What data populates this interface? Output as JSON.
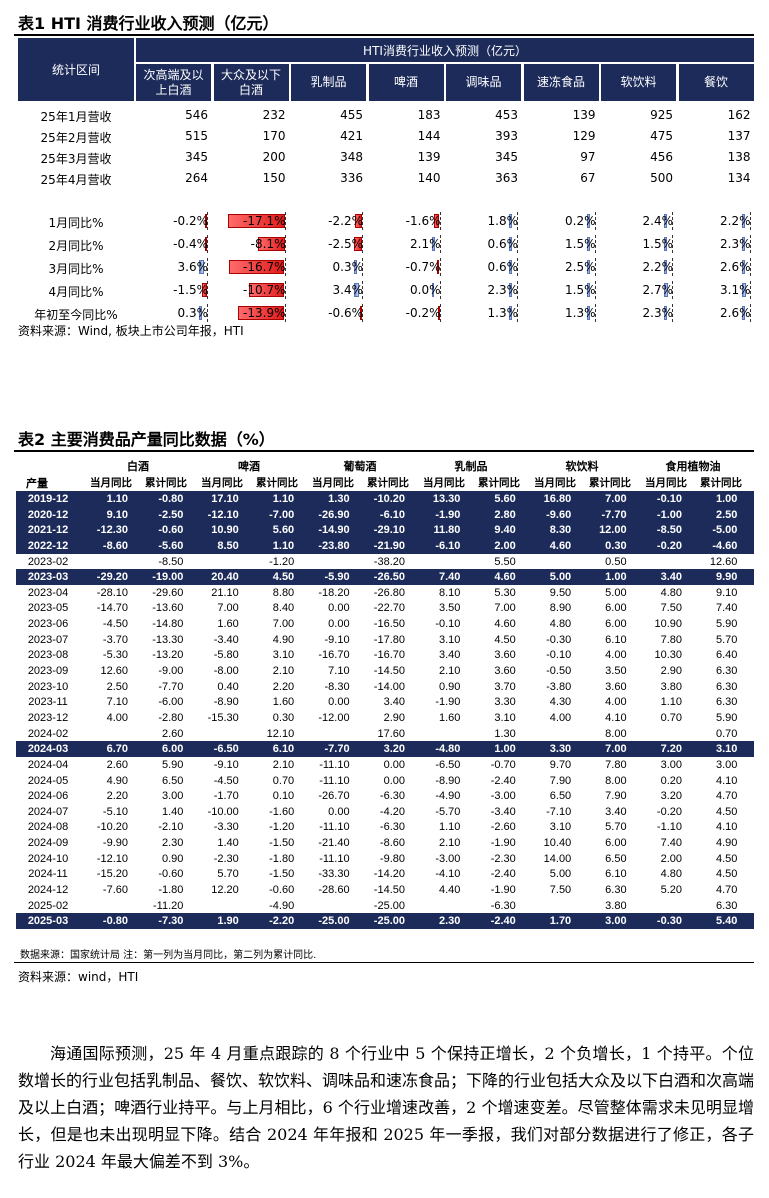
{
  "table1": {
    "caption": "表1   HTI 消费行业收入预测（亿元）",
    "corner": "统计区间",
    "group_header": "HTI消费行业收入预测（亿元）",
    "categories": [
      "次高端及以\n上白酒",
      "大众及以下\n白酒",
      "乳制品",
      "啤酒",
      "调味品",
      "速冻食品",
      "软饮料",
      "餐饮"
    ],
    "revenue_rows": [
      {
        "label": "25年1月营收",
        "values": [
          "546",
          "232",
          "455",
          "183",
          "453",
          "139",
          "925",
          "162"
        ]
      },
      {
        "label": "25年2月营收",
        "values": [
          "515",
          "170",
          "421",
          "144",
          "393",
          "129",
          "475",
          "137"
        ]
      },
      {
        "label": "25年3月营收",
        "values": [
          "345",
          "200",
          "348",
          "139",
          "345",
          "97",
          "456",
          "138"
        ]
      },
      {
        "label": "25年4月营收",
        "values": [
          "264",
          "150",
          "336",
          "140",
          "363",
          "67",
          "500",
          "134"
        ]
      }
    ],
    "yoy_rows": [
      {
        "label": "1月同比%",
        "values": [
          "-0.2%",
          "-17.1%",
          "-2.2%",
          "-1.6%",
          "1.8%",
          "0.2%",
          "2.4%",
          "2.2%"
        ],
        "nums": [
          -0.2,
          -17.1,
          -2.2,
          -1.6,
          1.8,
          0.2,
          2.4,
          2.2
        ]
      },
      {
        "label": "2月同比%",
        "values": [
          "-0.4%",
          "-8.1%",
          "-2.5%",
          "2.1%",
          "0.6%",
          "1.5%",
          "1.5%",
          "2.3%"
        ],
        "nums": [
          -0.4,
          -8.1,
          -2.5,
          2.1,
          0.6,
          1.5,
          1.5,
          2.3
        ]
      },
      {
        "label": "3月同比%",
        "values": [
          "3.6%",
          "-16.7%",
          "0.3%",
          "-0.7%",
          "0.6%",
          "2.5%",
          "2.2%",
          "2.6%"
        ],
        "nums": [
          3.6,
          -16.7,
          0.3,
          -0.7,
          0.6,
          2.5,
          2.2,
          2.6
        ]
      },
      {
        "label": "4月同比%",
        "values": [
          "-1.5%",
          "-10.7%",
          "3.4%",
          "0.0%",
          "2.3%",
          "1.5%",
          "2.7%",
          "3.1%"
        ],
        "nums": [
          -1.5,
          -10.7,
          3.4,
          0.0,
          2.3,
          1.5,
          2.7,
          3.1
        ]
      },
      {
        "label": "年初至今同比%",
        "values": [
          "0.3%",
          "-13.9%",
          "-0.6%",
          "-0.2%",
          "1.3%",
          "1.3%",
          "2.3%",
          "2.6%"
        ],
        "nums": [
          0.3,
          -13.9,
          -0.6,
          -0.2,
          1.3,
          1.3,
          2.3,
          2.6
        ]
      }
    ],
    "source": "资料来源：Wind, 板块上市公司年报，HTI"
  },
  "table2": {
    "caption": "表2   主要消费品产量同比数据（%）",
    "groups": [
      "白酒",
      "啤酒",
      "葡萄酒",
      "乳制品",
      "软饮料",
      "食用植物油"
    ],
    "row_label": "产量",
    "sub_headers": [
      "当月同比",
      "累计同比"
    ],
    "rows": [
      {
        "p": "2019-12",
        "v": [
          "1.10",
          "-0.80",
          "17.10",
          "1.10",
          "1.30",
          "-10.20",
          "13.30",
          "5.60",
          "16.80",
          "7.00",
          "-0.10",
          "1.00"
        ],
        "hl": true
      },
      {
        "p": "2020-12",
        "v": [
          "9.10",
          "-2.50",
          "-12.10",
          "-7.00",
          "-26.90",
          "-6.10",
          "-1.90",
          "2.80",
          "-9.60",
          "-7.70",
          "-1.00",
          "2.50"
        ],
        "hl": true
      },
      {
        "p": "2021-12",
        "v": [
          "-12.30",
          "-0.60",
          "10.90",
          "5.60",
          "-14.90",
          "-29.10",
          "11.80",
          "9.40",
          "8.30",
          "12.00",
          "-8.50",
          "-5.00"
        ],
        "hl": true
      },
      {
        "p": "2022-12",
        "v": [
          "-8.60",
          "-5.60",
          "8.50",
          "1.10",
          "-23.80",
          "-21.90",
          "-6.10",
          "2.00",
          "4.60",
          "0.30",
          "-0.20",
          "-4.60"
        ],
        "hl": true
      },
      {
        "p": "2023-02",
        "v": [
          "",
          "-8.50",
          "",
          "-1.20",
          "",
          "-38.20",
          "",
          "5.50",
          "",
          "0.50",
          "",
          "12.60"
        ],
        "hl": false
      },
      {
        "p": "2023-03",
        "v": [
          "-29.20",
          "-19.00",
          "20.40",
          "4.50",
          "-5.90",
          "-26.50",
          "7.40",
          "4.60",
          "5.00",
          "1.00",
          "3.40",
          "9.90"
        ],
        "hl": true
      },
      {
        "p": "2023-04",
        "v": [
          "-28.10",
          "-29.60",
          "21.10",
          "8.80",
          "-18.20",
          "-26.80",
          "8.10",
          "5.30",
          "9.50",
          "5.00",
          "4.80",
          "9.10"
        ],
        "hl": false
      },
      {
        "p": "2023-05",
        "v": [
          "-14.70",
          "-13.60",
          "7.00",
          "8.40",
          "0.00",
          "-22.70",
          "3.50",
          "7.00",
          "8.90",
          "6.00",
          "7.50",
          "7.40"
        ],
        "hl": false
      },
      {
        "p": "2023-06",
        "v": [
          "-4.50",
          "-14.80",
          "1.60",
          "7.00",
          "0.00",
          "-16.50",
          "-0.10",
          "4.60",
          "4.80",
          "6.00",
          "10.90",
          "5.90"
        ],
        "hl": false
      },
      {
        "p": "2023-07",
        "v": [
          "-3.70",
          "-13.30",
          "-3.40",
          "4.90",
          "-9.10",
          "-17.80",
          "3.10",
          "4.50",
          "-0.30",
          "6.10",
          "7.80",
          "5.70"
        ],
        "hl": false
      },
      {
        "p": "2023-08",
        "v": [
          "-5.30",
          "-13.20",
          "-5.80",
          "3.10",
          "-16.70",
          "-16.70",
          "3.40",
          "3.60",
          "-0.10",
          "4.00",
          "10.30",
          "6.40"
        ],
        "hl": false
      },
      {
        "p": "2023-09",
        "v": [
          "12.60",
          "-9.00",
          "-8.00",
          "2.10",
          "7.10",
          "-14.50",
          "2.10",
          "3.60",
          "-0.50",
          "3.50",
          "2.90",
          "6.30"
        ],
        "hl": false
      },
      {
        "p": "2023-10",
        "v": [
          "2.50",
          "-7.70",
          "0.40",
          "2.20",
          "-8.30",
          "-14.00",
          "0.90",
          "3.70",
          "-3.80",
          "3.60",
          "3.80",
          "6.30"
        ],
        "hl": false
      },
      {
        "p": "2023-11",
        "v": [
          "7.10",
          "-6.00",
          "-8.90",
          "1.60",
          "0.00",
          "3.40",
          "-1.90",
          "3.30",
          "4.30",
          "4.00",
          "1.10",
          "6.30"
        ],
        "hl": false
      },
      {
        "p": "2023-12",
        "v": [
          "4.00",
          "-2.80",
          "-15.30",
          "0.30",
          "-12.00",
          "2.90",
          "1.60",
          "3.10",
          "4.00",
          "4.10",
          "0.70",
          "5.90"
        ],
        "hl": false
      },
      {
        "p": "2024-02",
        "v": [
          "",
          "2.60",
          "",
          "12.10",
          "",
          "17.60",
          "",
          "1.30",
          "",
          "8.00",
          "",
          "0.70"
        ],
        "hl": false
      },
      {
        "p": "2024-03",
        "v": [
          "6.70",
          "6.00",
          "-6.50",
          "6.10",
          "-7.70",
          "3.20",
          "-4.80",
          "1.00",
          "3.30",
          "7.00",
          "7.20",
          "3.10"
        ],
        "hl": true
      },
      {
        "p": "2024-04",
        "v": [
          "2.60",
          "5.90",
          "-9.10",
          "2.10",
          "-11.10",
          "0.00",
          "-6.50",
          "-0.70",
          "9.70",
          "7.80",
          "3.00",
          "3.00"
        ],
        "hl": false
      },
      {
        "p": "2024-05",
        "v": [
          "4.90",
          "6.50",
          "-4.50",
          "0.70",
          "-11.10",
          "0.00",
          "-8.90",
          "-2.40",
          "7.90",
          "8.00",
          "0.20",
          "4.10"
        ],
        "hl": false
      },
      {
        "p": "2024-06",
        "v": [
          "2.20",
          "3.00",
          "-1.70",
          "0.10",
          "-26.70",
          "-6.30",
          "-4.90",
          "-3.00",
          "6.50",
          "7.90",
          "3.20",
          "4.70"
        ],
        "hl": false
      },
      {
        "p": "2024-07",
        "v": [
          "-5.10",
          "1.40",
          "-10.00",
          "-1.60",
          "0.00",
          "-4.20",
          "-5.70",
          "-3.40",
          "-7.10",
          "3.40",
          "-0.20",
          "4.50"
        ],
        "hl": false
      },
      {
        "p": "2024-08",
        "v": [
          "-10.20",
          "-2.10",
          "-3.30",
          "-1.20",
          "-11.10",
          "-6.30",
          "1.10",
          "-2.60",
          "3.10",
          "5.70",
          "-1.10",
          "4.10"
        ],
        "hl": false
      },
      {
        "p": "2024-09",
        "v": [
          "-9.90",
          "2.30",
          "1.40",
          "-1.50",
          "-21.40",
          "-8.60",
          "2.10",
          "-1.90",
          "10.40",
          "6.00",
          "7.40",
          "4.90"
        ],
        "hl": false
      },
      {
        "p": "2024-10",
        "v": [
          "-12.10",
          "0.90",
          "-2.30",
          "-1.80",
          "-11.10",
          "-9.80",
          "-3.00",
          "-2.30",
          "14.00",
          "6.50",
          "2.00",
          "4.50"
        ],
        "hl": false
      },
      {
        "p": "2024-11",
        "v": [
          "-15.20",
          "-0.60",
          "5.70",
          "-1.50",
          "-33.30",
          "-14.20",
          "-4.10",
          "-2.40",
          "5.00",
          "6.10",
          "4.80",
          "4.50"
        ],
        "hl": false
      },
      {
        "p": "2024-12",
        "v": [
          "-7.60",
          "-1.80",
          "12.20",
          "-0.60",
          "-28.60",
          "-14.50",
          "4.40",
          "-1.90",
          "7.50",
          "6.30",
          "5.20",
          "4.70"
        ],
        "hl": false
      },
      {
        "p": "2025-02",
        "v": [
          "",
          "-11.20",
          "",
          "-4.90",
          "",
          "-25.00",
          "",
          "-6.30",
          "",
          "3.80",
          "",
          "6.30"
        ],
        "hl": false
      },
      {
        "p": "2025-03",
        "v": [
          "-0.80",
          "-7.30",
          "1.90",
          "-2.20",
          "-25.00",
          "-25.00",
          "2.30",
          "-2.40",
          "1.70",
          "3.00",
          "-0.30",
          "5.40"
        ],
        "hl": true
      }
    ],
    "note": "数据来源：国家统计局  注：第一列为当月同比，第二列为累计同比.",
    "source": "资料来源：wind，HTI"
  },
  "paragraph": "海通国际预测，25 年 4 月重点跟踪的 8 个行业中 5 个保持正增长，2 个负增长，1 个持平。个位数增长的行业包括乳制品、餐饮、软饮料、调味品和速冻食品；下降的行业包括大众及以下白酒和次高端及以上白酒；啤酒行业持平。与上月相比，6 个行业增速改善，2 个增速变差。尽管整体需求未见明显增长，但是也未出现明显下降。结合 2024 年年报和 2025 年一季报，我们对部分数据进行了修正，各子行业 2024 年最大偏差不到 3%。"
}
